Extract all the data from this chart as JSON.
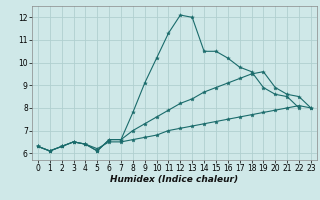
{
  "xlabel": "Humidex (Indice chaleur)",
  "xlim": [
    -0.5,
    23.5
  ],
  "ylim": [
    5.7,
    12.5
  ],
  "xticks": [
    0,
    1,
    2,
    3,
    4,
    5,
    6,
    7,
    8,
    9,
    10,
    11,
    12,
    13,
    14,
    15,
    16,
    17,
    18,
    19,
    20,
    21,
    22,
    23
  ],
  "yticks": [
    6,
    7,
    8,
    9,
    10,
    11,
    12
  ],
  "bg_color": "#cfe8e8",
  "grid_color": "#b0d0d0",
  "line_color": "#1a6b6b",
  "line1_x": [
    0,
    1,
    2,
    3,
    4,
    5,
    6,
    7,
    8,
    9,
    10,
    11,
    12,
    13,
    14,
    15,
    16,
    17,
    18,
    19,
    20,
    21,
    22
  ],
  "line1_y": [
    6.3,
    6.1,
    6.3,
    6.5,
    6.4,
    6.1,
    6.6,
    6.6,
    7.8,
    9.1,
    10.2,
    11.3,
    12.1,
    12.0,
    10.5,
    10.5,
    10.2,
    9.8,
    9.6,
    8.9,
    8.6,
    8.5,
    8.0
  ],
  "line2_x": [
    0,
    1,
    2,
    3,
    4,
    5,
    6,
    7,
    8,
    9,
    10,
    11,
    12,
    13,
    14,
    15,
    16,
    17,
    18,
    19,
    20,
    21,
    22,
    23
  ],
  "line2_y": [
    6.3,
    6.1,
    6.3,
    6.5,
    6.4,
    6.1,
    6.6,
    6.6,
    7.0,
    7.3,
    7.6,
    7.9,
    8.2,
    8.4,
    8.7,
    8.9,
    9.1,
    9.3,
    9.5,
    9.6,
    8.9,
    8.6,
    8.5,
    8.0
  ],
  "line3_x": [
    0,
    1,
    2,
    3,
    4,
    5,
    6,
    7,
    8,
    9,
    10,
    11,
    12,
    13,
    14,
    15,
    16,
    17,
    18,
    19,
    20,
    21,
    22,
    23
  ],
  "line3_y": [
    6.3,
    6.1,
    6.3,
    6.5,
    6.4,
    6.2,
    6.5,
    6.5,
    6.6,
    6.7,
    6.8,
    7.0,
    7.1,
    7.2,
    7.3,
    7.4,
    7.5,
    7.6,
    7.7,
    7.8,
    7.9,
    8.0,
    8.1,
    8.0
  ]
}
